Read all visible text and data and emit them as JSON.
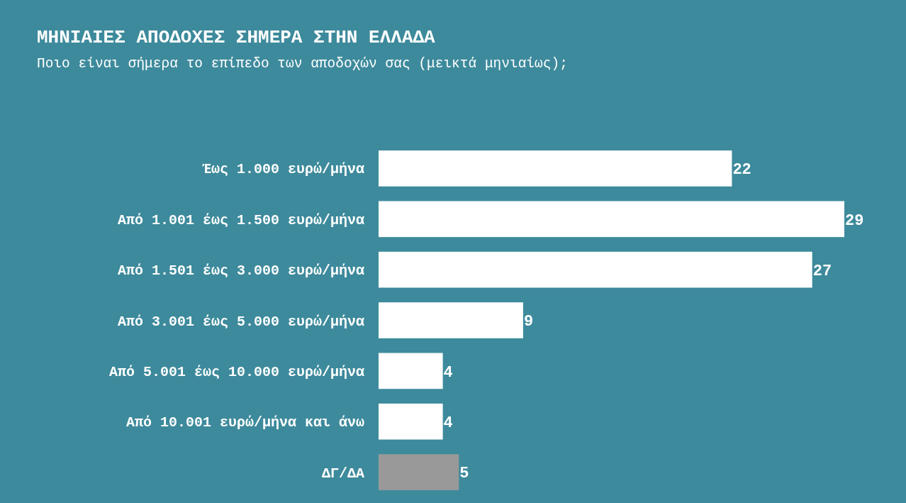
{
  "chart_data": {
    "type": "bar",
    "orientation": "horizontal",
    "title": "ΜΗΝΙΑΙΕΣ ΑΠΟΔΟΧΕΣ ΣΗΜΕΡΑ ΣΤΗΝ ΕΛΛΑΔΑ",
    "subtitle": "Ποιο είναι σήμερα το επίπεδο των αποδοχών σας (μεικτά μηνιαίως);",
    "categories": [
      "Έως 1.000 ευρώ/μήνα",
      "Από 1.001 έως 1.500 ευρώ/μήνα",
      "Από 1.501 έως 3.000 ευρώ/μήνα",
      "Από 3.001 έως 5.000 ευρώ/μήνα",
      "Από 5.001 έως 10.000 ευρώ/μήνα",
      "Από 10.001 ευρώ/μήνα και άνω",
      "ΔΓ/ΔΑ"
    ],
    "values": [
      22,
      29,
      27,
      9,
      4,
      4,
      5
    ],
    "colors": [
      "#ffffff",
      "#ffffff",
      "#ffffff",
      "#ffffff",
      "#ffffff",
      "#ffffff",
      "#999999"
    ],
    "data_labels": true
  }
}
